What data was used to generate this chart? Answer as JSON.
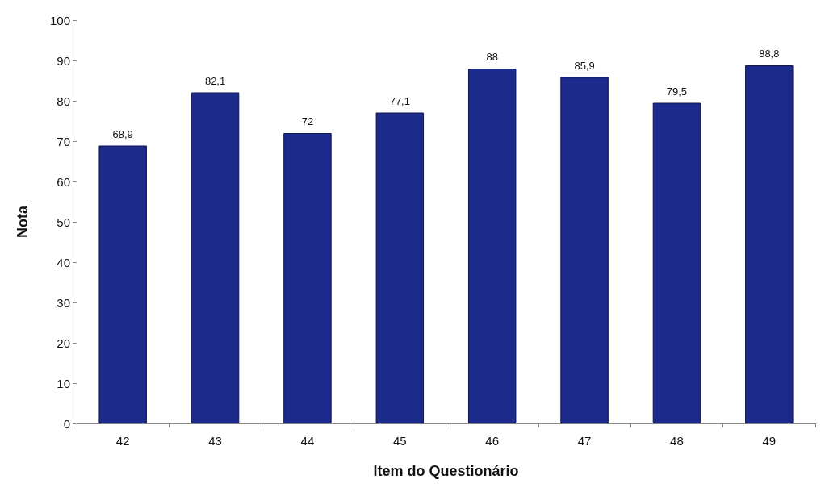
{
  "chart_data": {
    "type": "bar",
    "xlabel": "Item do Questionário",
    "ylabel": "Nota",
    "categories": [
      "42",
      "43",
      "44",
      "45",
      "46",
      "47",
      "48",
      "49"
    ],
    "values": [
      68.9,
      82.1,
      72,
      77.1,
      88,
      85.9,
      79.5,
      88.8
    ],
    "value_labels": [
      "68,9",
      "82,1",
      "72",
      "77,1",
      "88",
      "85,9",
      "79,5",
      "88,8"
    ],
    "color": "#1c2a8c",
    "ylim": [
      0,
      100
    ],
    "yticks": [
      0,
      10,
      20,
      30,
      40,
      50,
      60,
      70,
      80,
      90,
      100
    ],
    "grid": false
  }
}
